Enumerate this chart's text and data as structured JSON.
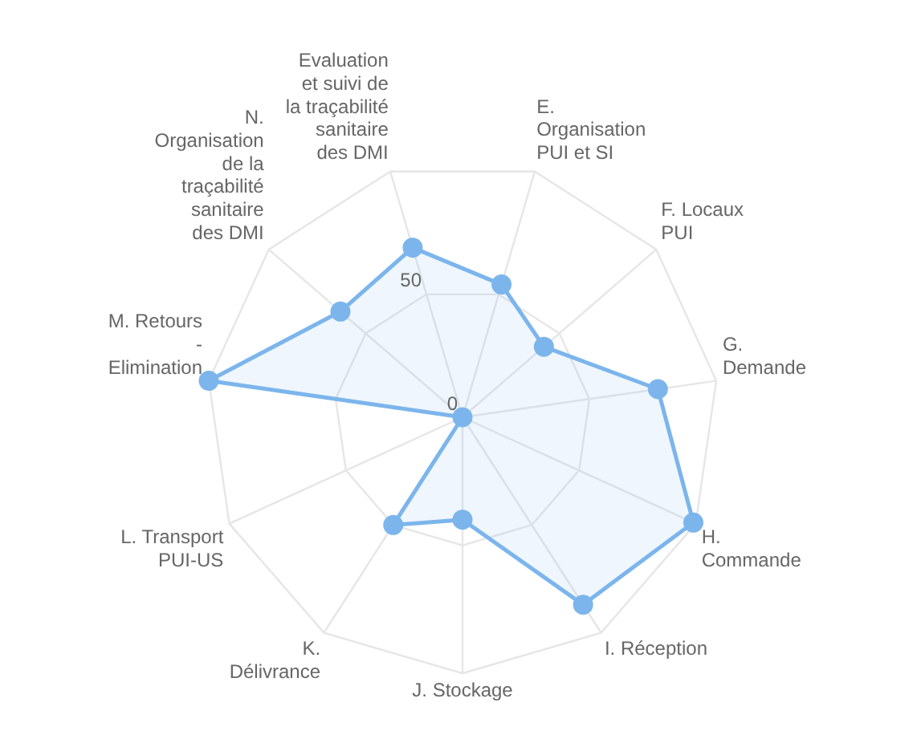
{
  "chart_data": {
    "type": "radar",
    "categories": [
      "Evaluation et suivi de la traçabilité sanitaire des DMI",
      "E. Organisation PUI et SI",
      "F. Locaux PUI",
      "G. Demande",
      "H. Commande",
      "I. Réception",
      "J. Stockage",
      "K. Délivrance",
      "L. Transport PUI-US",
      "M. Retours - Elimination",
      "N. Organisation de la traçabilité sanitaire des DMI"
    ],
    "series": [
      {
        "color": "#7cb5ec",
        "values": [
          69,
          54,
          42,
          77,
          99,
          87,
          40,
          50,
          0,
          100,
          63
        ]
      }
    ],
    "ylim": [
      0,
      100
    ],
    "yticks": [
      0,
      50
    ],
    "grid": true,
    "legend": false,
    "marker": "circle",
    "line_style": "solid"
  }
}
